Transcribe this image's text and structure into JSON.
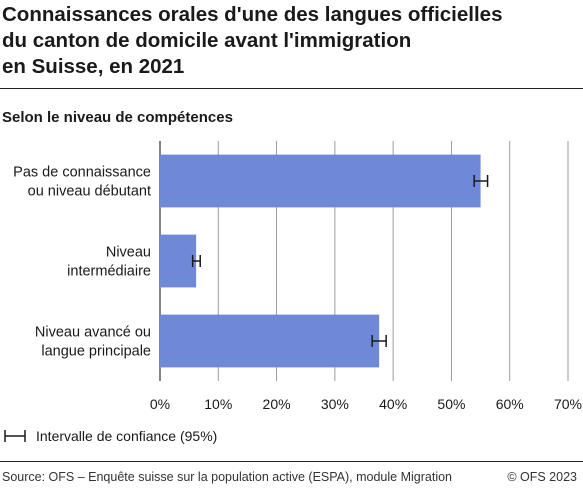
{
  "header": {
    "title_lines": [
      "Connaissances orales d'une des langues officielles",
      "du canton de domicile avant l'immigration",
      "en Suisse, en 2021"
    ],
    "subtitle": "Selon le niveau de compétences"
  },
  "legend": {
    "ci_label": "Intervalle de confiance (95%)",
    "ci_icon": "error-bar-icon"
  },
  "footer": {
    "source": "Source: OFS – Enquête suisse sur la population active (ESPA), module Migration",
    "copyright": "© OFS 2023"
  },
  "colors": {
    "bar": "#7088d8",
    "grid": "#9a9a9a",
    "axis": "#333333",
    "text": "#1a1a1a"
  },
  "chart_data": {
    "type": "bar",
    "orientation": "horizontal",
    "categories": [
      [
        "Pas de connaissance",
        "ou niveau débutant"
      ],
      [
        "Niveau",
        "intermédiaire"
      ],
      [
        "Niveau avancé ou",
        "langue principale"
      ]
    ],
    "values": [
      55.0,
      6.2,
      37.6
    ],
    "ci_low": [
      53.9,
      5.6,
      36.4
    ],
    "ci_high": [
      56.2,
      6.9,
      38.8
    ],
    "xlim": [
      0,
      70
    ],
    "xticks": [
      0,
      10,
      20,
      30,
      40,
      50,
      60,
      70
    ],
    "tick_format": "{v}%",
    "grid": true
  }
}
